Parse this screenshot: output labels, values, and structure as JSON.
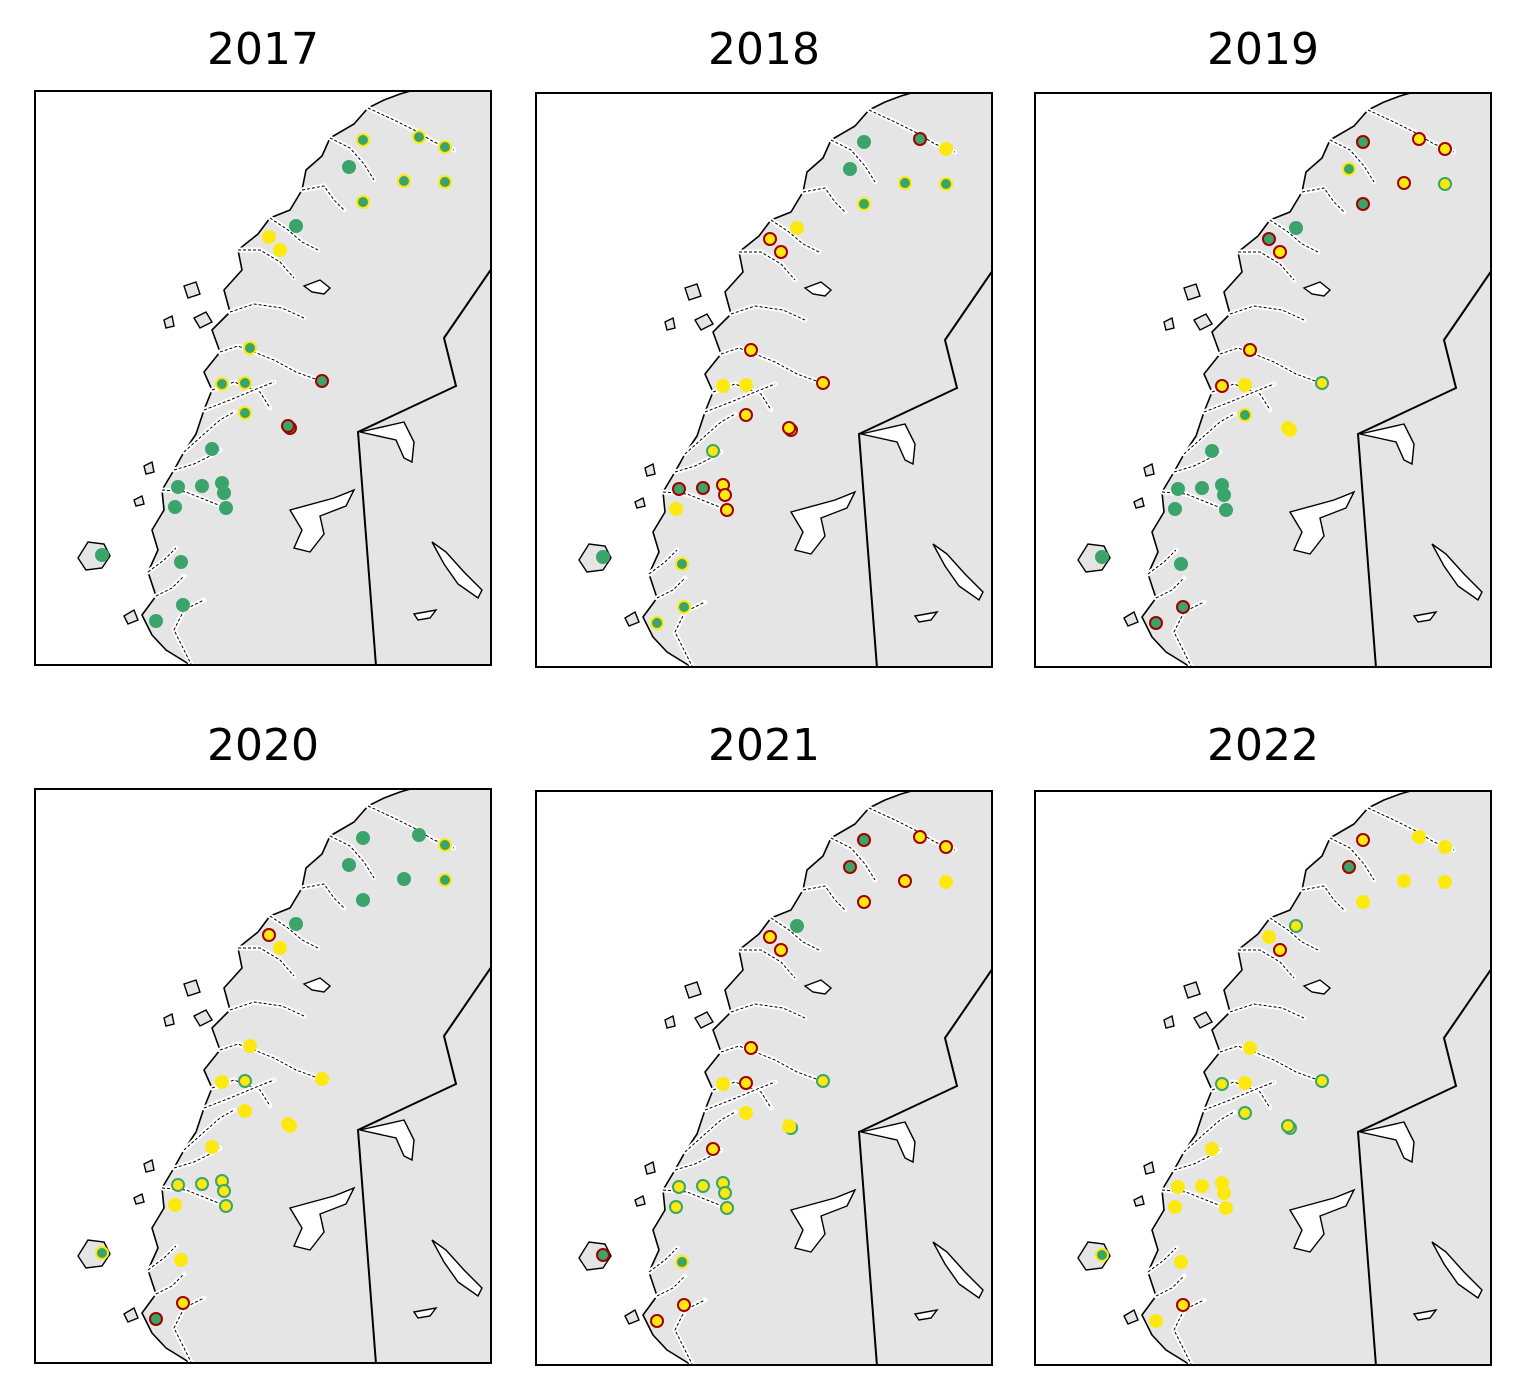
{
  "figure": {
    "panels": [
      {
        "title": "2017",
        "points": [
          [
            "g",
            "y"
          ],
          [
            "g",
            "y"
          ],
          [
            "g",
            "y"
          ],
          [
            "g",
            "g"
          ],
          [
            "g",
            "y"
          ],
          [
            "g",
            "y"
          ],
          [
            "g",
            "y"
          ],
          [
            "g",
            "g"
          ],
          [
            "y",
            "y"
          ],
          [
            "y",
            "y"
          ],
          [
            "g",
            "y"
          ],
          [
            "g",
            "y"
          ],
          [
            "g",
            "y"
          ],
          [
            "g",
            "y"
          ],
          [
            "g",
            "r"
          ],
          [
            "g",
            "r"
          ],
          [
            "g",
            "r"
          ],
          [
            "g",
            "g"
          ],
          [
            "g",
            "g"
          ],
          [
            "g",
            "g"
          ],
          [
            "g",
            "g"
          ],
          [
            "g",
            "g"
          ],
          [
            "g",
            "g"
          ],
          [
            "g",
            "g"
          ],
          [
            "g",
            "g"
          ],
          [
            "g",
            "g"
          ],
          [
            "g",
            "g"
          ],
          [
            "g",
            "g"
          ]
        ]
      },
      {
        "title": "2018",
        "points": [
          [
            "g",
            "g"
          ],
          [
            "g",
            "r"
          ],
          [
            "y",
            "y"
          ],
          [
            "g",
            "g"
          ],
          [
            "g",
            "y"
          ],
          [
            "g",
            "y"
          ],
          [
            "g",
            "y"
          ],
          [
            "y",
            "y"
          ],
          [
            "y",
            "r"
          ],
          [
            "y",
            "r"
          ],
          [
            "y",
            "r"
          ],
          [
            "y",
            "y"
          ],
          [
            "y",
            "y"
          ],
          [
            "y",
            "r"
          ],
          [
            "y",
            "r"
          ],
          [
            "y",
            "r"
          ],
          [
            "y",
            "r"
          ],
          [
            "y",
            "g"
          ],
          [
            "g",
            "r"
          ],
          [
            "g",
            "r"
          ],
          [
            "y",
            "r"
          ],
          [
            "y",
            "r"
          ],
          [
            "y",
            "r"
          ],
          [
            "y",
            "y"
          ],
          [
            "g",
            "g"
          ],
          [
            "g",
            "y"
          ],
          [
            "g",
            "y"
          ],
          [
            "g",
            "y"
          ]
        ]
      },
      {
        "title": "2019",
        "points": [
          [
            "g",
            "r"
          ],
          [
            "y",
            "r"
          ],
          [
            "y",
            "r"
          ],
          [
            "g",
            "y"
          ],
          [
            "y",
            "r"
          ],
          [
            "g",
            "r"
          ],
          [
            "y",
            "g"
          ],
          [
            "g",
            "g"
          ],
          [
            "g",
            "r"
          ],
          [
            "y",
            "r"
          ],
          [
            "y",
            "r"
          ],
          [
            "y",
            "r"
          ],
          [
            "y",
            "y"
          ],
          [
            "g",
            "y"
          ],
          [
            "y",
            "g"
          ],
          [
            "y",
            "y"
          ],
          [
            "y",
            "y"
          ],
          [
            "g",
            "g"
          ],
          [
            "g",
            "g"
          ],
          [
            "g",
            "g"
          ],
          [
            "g",
            "g"
          ],
          [
            "g",
            "g"
          ],
          [
            "g",
            "g"
          ],
          [
            "g",
            "g"
          ],
          [
            "g",
            "g"
          ],
          [
            "g",
            "g"
          ],
          [
            "g",
            "r"
          ],
          [
            "g",
            "r"
          ]
        ]
      },
      {
        "title": "2020",
        "points": [
          [
            "g",
            "g"
          ],
          [
            "g",
            "g"
          ],
          [
            "g",
            "y"
          ],
          [
            "g",
            "g"
          ],
          [
            "g",
            "g"
          ],
          [
            "g",
            "g"
          ],
          [
            "g",
            "y"
          ],
          [
            "g",
            "g"
          ],
          [
            "y",
            "r"
          ],
          [
            "y",
            "y"
          ],
          [
            "y",
            "y"
          ],
          [
            "y",
            "y"
          ],
          [
            "y",
            "g"
          ],
          [
            "y",
            "y"
          ],
          [
            "y",
            "y"
          ],
          [
            "y",
            "y"
          ],
          [
            "y",
            "y"
          ],
          [
            "y",
            "y"
          ],
          [
            "y",
            "g"
          ],
          [
            "y",
            "g"
          ],
          [
            "y",
            "g"
          ],
          [
            "y",
            "g"
          ],
          [
            "y",
            "g"
          ],
          [
            "y",
            "y"
          ],
          [
            "g",
            "y"
          ],
          [
            "y",
            "y"
          ],
          [
            "y",
            "r"
          ],
          [
            "g",
            "r"
          ]
        ]
      },
      {
        "title": "2021",
        "points": [
          [
            "g",
            "r"
          ],
          [
            "y",
            "r"
          ],
          [
            "y",
            "r"
          ],
          [
            "g",
            "r"
          ],
          [
            "y",
            "r"
          ],
          [
            "y",
            "r"
          ],
          [
            "y",
            "y"
          ],
          [
            "g",
            "g"
          ],
          [
            "y",
            "r"
          ],
          [
            "y",
            "r"
          ],
          [
            "y",
            "r"
          ],
          [
            "y",
            "y"
          ],
          [
            "y",
            "r"
          ],
          [
            "y",
            "y"
          ],
          [
            "y",
            "g"
          ],
          [
            "y",
            "g"
          ],
          [
            "y",
            "y"
          ],
          [
            "y",
            "r"
          ],
          [
            "y",
            "g"
          ],
          [
            "y",
            "g"
          ],
          [
            "y",
            "g"
          ],
          [
            "y",
            "g"
          ],
          [
            "y",
            "g"
          ],
          [
            "y",
            "g"
          ],
          [
            "g",
            "r"
          ],
          [
            "g",
            "y"
          ],
          [
            "y",
            "r"
          ],
          [
            "y",
            "r"
          ]
        ]
      },
      {
        "title": "2022",
        "points": [
          [
            "y",
            "r"
          ],
          [
            "y",
            "y"
          ],
          [
            "y",
            "y"
          ],
          [
            "g",
            "r"
          ],
          [
            "y",
            "y"
          ],
          [
            "y",
            "y"
          ],
          [
            "y",
            "y"
          ],
          [
            "y",
            "g"
          ],
          [
            "y",
            "y"
          ],
          [
            "y",
            "r"
          ],
          [
            "y",
            "y"
          ],
          [
            "y",
            "g"
          ],
          [
            "y",
            "y"
          ],
          [
            "y",
            "g"
          ],
          [
            "y",
            "g"
          ],
          [
            "y",
            "g"
          ],
          [
            "y",
            "g"
          ],
          [
            "y",
            "y"
          ],
          [
            "y",
            "y"
          ],
          [
            "y",
            "y"
          ],
          [
            "y",
            "y"
          ],
          [
            "y",
            "y"
          ],
          [
            "y",
            "y"
          ],
          [
            "y",
            "y"
          ],
          [
            "g",
            "y"
          ],
          [
            "y",
            "y"
          ],
          [
            "y",
            "r"
          ],
          [
            "y",
            "y"
          ]
        ]
      }
    ]
  },
  "colors": {
    "g": "#3aa46a",
    "y": "#fde910",
    "r": "#a00000",
    "land": "#e5e5e5",
    "sea": "#ffffff",
    "line": "#000000"
  }
}
